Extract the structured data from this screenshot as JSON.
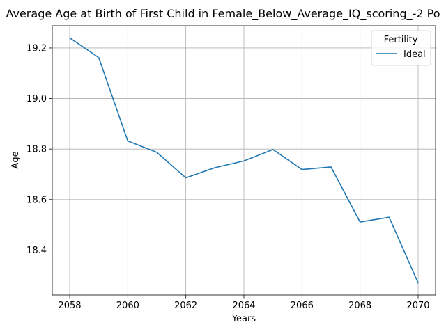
{
  "chart_data": {
    "type": "line",
    "title": "Average Age at Birth of First Child in Female_Below_Average_IQ_scoring_-2 Po",
    "xlabel": "Years",
    "ylabel": "Age",
    "x": [
      2058,
      2059,
      2060,
      2061,
      2062,
      2063,
      2064,
      2065,
      2066,
      2067,
      2068,
      2069,
      2070
    ],
    "series": [
      {
        "name": "Ideal",
        "color": "#1f77b4",
        "values": [
          19.24,
          19.162,
          18.832,
          18.787,
          18.686,
          18.726,
          18.753,
          18.798,
          18.719,
          18.729,
          18.511,
          18.53,
          18.27
        ]
      }
    ],
    "xlim": [
      2057.4,
      2070.6
    ],
    "ylim": [
      18.222,
      19.288
    ],
    "xticks": [
      2058,
      2060,
      2062,
      2064,
      2066,
      2068,
      2070
    ],
    "xtick_labels": [
      "2058",
      "2060",
      "2062",
      "2064",
      "2066",
      "2068",
      "2070"
    ],
    "yticks": [
      18.4,
      18.6,
      18.8,
      19.0,
      19.2
    ],
    "ytick_labels": [
      "18.4",
      "18.6",
      "18.8",
      "19.0",
      "19.2"
    ],
    "grid": true,
    "legend": {
      "title": "Fertility",
      "placement": "top-right"
    }
  }
}
